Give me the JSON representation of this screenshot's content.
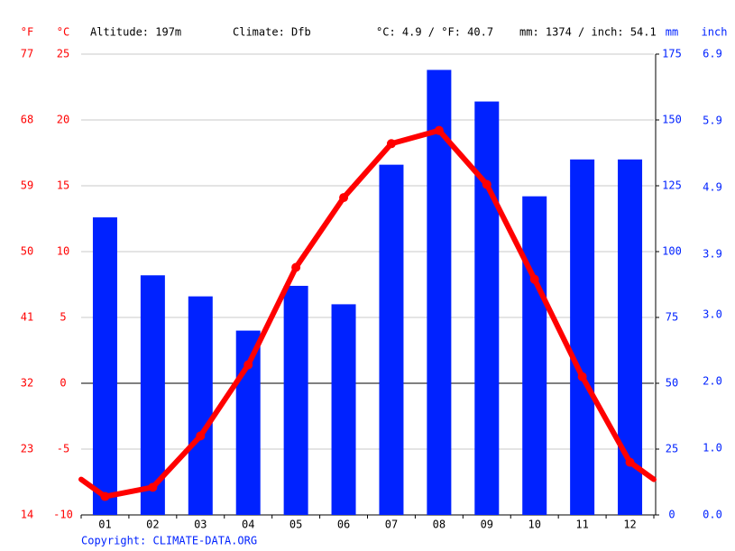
{
  "chart_data": {
    "type": "climate",
    "header": {
      "f_unit": "°F",
      "c_unit": "°C",
      "altitude": "Altitude: 197m",
      "climate": "Climate: Dfb",
      "avg_temp": "°C: 4.9 / °F: 40.7",
      "total_precip": "mm: 1374 / inch: 54.1",
      "mm_unit": "mm",
      "inch_unit": "inch"
    },
    "categories": [
      "01",
      "02",
      "03",
      "04",
      "05",
      "06",
      "07",
      "08",
      "09",
      "10",
      "11",
      "12"
    ],
    "series": [
      {
        "type": "bar",
        "color": "#0022ff",
        "axis": "y2",
        "values": [
          113,
          91,
          83,
          70,
          87,
          80,
          133,
          169,
          157,
          121,
          135,
          135
        ]
      },
      {
        "type": "line",
        "color": "#ff0000",
        "axis": "y",
        "values": [
          -8.6,
          -7.9,
          -4.0,
          1.4,
          8.8,
          14.1,
          18.2,
          19.2,
          15.1,
          7.9,
          0.5,
          -6.0
        ]
      }
    ],
    "ylim": [
      -10,
      25
    ],
    "yticks": [
      -10,
      -5,
      0,
      5,
      10,
      15,
      20,
      25
    ],
    "y2lim": [
      0,
      175
    ],
    "y2ticks": [
      0,
      25,
      50,
      75,
      100,
      125,
      150,
      175
    ],
    "y3lim": [
      14,
      77
    ],
    "y3ticks": [
      14,
      23,
      32,
      41,
      50,
      59,
      68,
      77
    ],
    "y4lim": [
      0,
      6.9
    ],
    "y4ticks": [
      {
        "value": 0,
        "label": "0.0"
      },
      {
        "value": 1,
        "label": "1.0"
      },
      {
        "value": 2,
        "label": "2.0"
      },
      {
        "value": 3,
        "label": "3.0"
      },
      3.9,
      4.9,
      5.9,
      6.9
    ],
    "grid": true,
    "copyright": "Copyright: CLIMATE-DATA.ORG"
  }
}
